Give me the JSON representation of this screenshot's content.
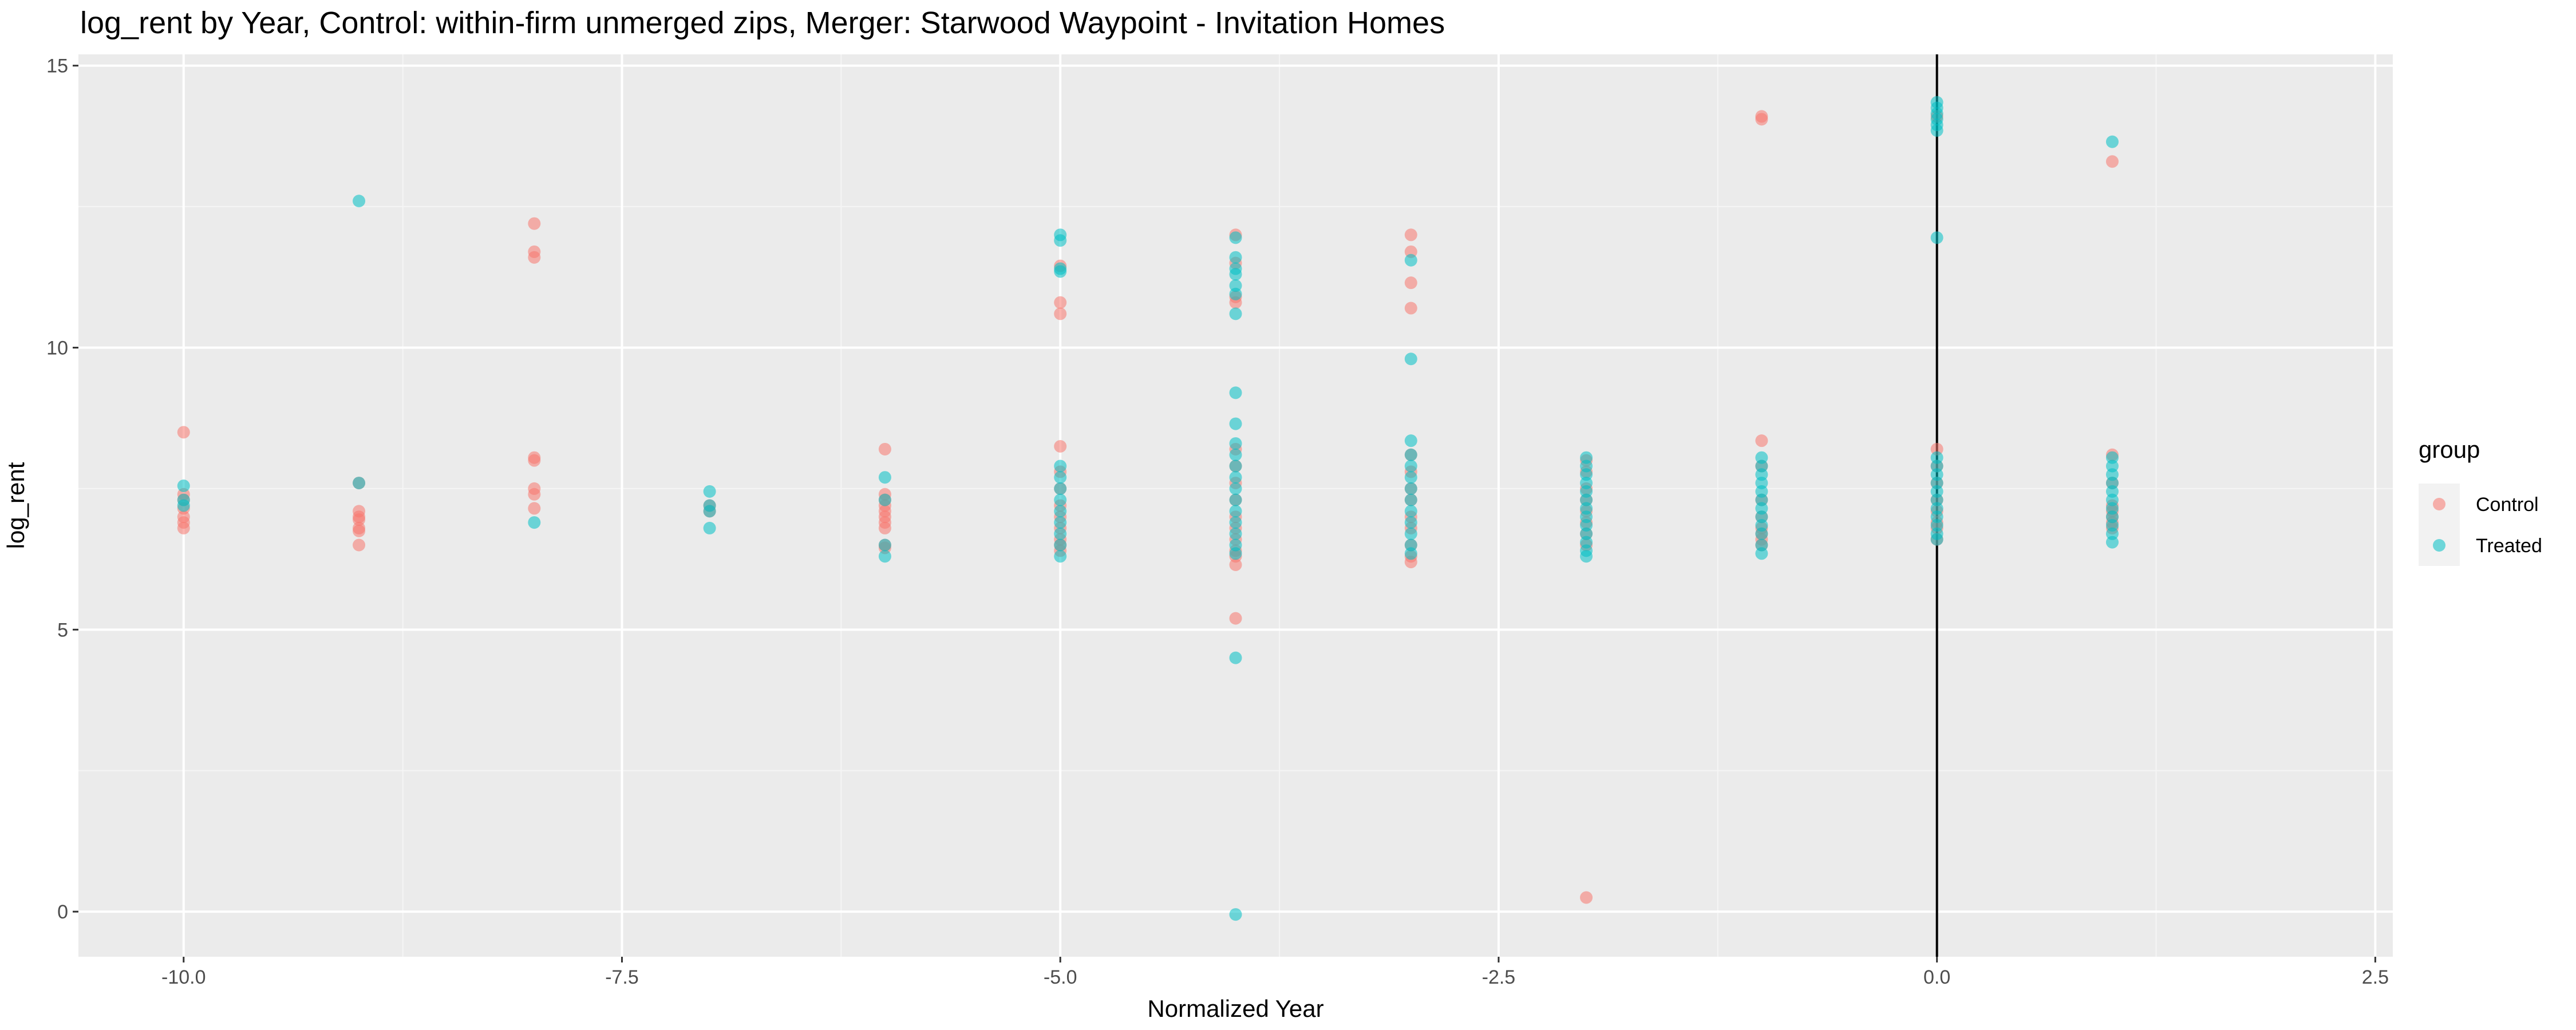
{
  "chart_data": {
    "type": "scatter",
    "title": "log_rent by Year, Control: within-firm unmerged zips, Merger: Starwood Waypoint - Invitation Homes",
    "xlabel": "Normalized Year",
    "ylabel": "log_rent",
    "xlim": [
      -10.6,
      2.6
    ],
    "ylim": [
      -0.8,
      15.2
    ],
    "x_ticks": [
      -10.0,
      -7.5,
      -5.0,
      -2.5,
      0.0,
      2.5
    ],
    "x_tick_labels": [
      "-10.0",
      "-7.5",
      "-5.0",
      "-2.5",
      "0.0",
      "2.5"
    ],
    "y_ticks": [
      0,
      5,
      10,
      15
    ],
    "y_tick_labels": [
      "0",
      "5",
      "10",
      "15"
    ],
    "vline_x": 0,
    "grid": true,
    "background": "#ebebeb",
    "legend": {
      "title": "group",
      "position": "right"
    },
    "series": [
      {
        "name": "Control",
        "color": "#f8766d",
        "points": [
          [
            -10,
            8.5
          ],
          [
            -10,
            7.4
          ],
          [
            -10,
            7.3
          ],
          [
            -10,
            7.15
          ],
          [
            -10,
            7.0
          ],
          [
            -10,
            6.9
          ],
          [
            -10,
            6.8
          ],
          [
            -9,
            7.6
          ],
          [
            -9,
            7.1
          ],
          [
            -9,
            7.0
          ],
          [
            -9,
            6.95
          ],
          [
            -9,
            6.8
          ],
          [
            -9,
            6.75
          ],
          [
            -9,
            6.5
          ],
          [
            -8,
            12.2
          ],
          [
            -8,
            11.7
          ],
          [
            -8,
            11.6
          ],
          [
            -8,
            8.05
          ],
          [
            -8,
            8.0
          ],
          [
            -8,
            7.5
          ],
          [
            -8,
            7.4
          ],
          [
            -8,
            7.15
          ],
          [
            -7,
            7.2
          ],
          [
            -7,
            7.1
          ],
          [
            -6,
            8.2
          ],
          [
            -6,
            7.4
          ],
          [
            -6,
            7.3
          ],
          [
            -6,
            7.2
          ],
          [
            -6,
            7.1
          ],
          [
            -6,
            7.0
          ],
          [
            -6,
            6.9
          ],
          [
            -6,
            6.8
          ],
          [
            -6,
            6.5
          ],
          [
            -6,
            6.45
          ],
          [
            -5,
            11.45
          ],
          [
            -5,
            10.8
          ],
          [
            -5,
            10.6
          ],
          [
            -5,
            8.25
          ],
          [
            -5,
            7.8
          ],
          [
            -5,
            7.5
          ],
          [
            -5,
            7.2
          ],
          [
            -5,
            7.0
          ],
          [
            -5,
            6.8
          ],
          [
            -5,
            6.6
          ],
          [
            -5,
            6.5
          ],
          [
            -5,
            6.4
          ],
          [
            -4,
            12.0
          ],
          [
            -4,
            11.5
          ],
          [
            -4,
            10.9
          ],
          [
            -4,
            10.8
          ],
          [
            -4,
            8.2
          ],
          [
            -4,
            7.9
          ],
          [
            -4,
            7.6
          ],
          [
            -4,
            7.3
          ],
          [
            -4,
            7.0
          ],
          [
            -4,
            6.8
          ],
          [
            -4,
            6.6
          ],
          [
            -4,
            6.4
          ],
          [
            -4,
            6.3
          ],
          [
            -4,
            6.15
          ],
          [
            -4,
            5.2
          ],
          [
            -3,
            12.0
          ],
          [
            -3,
            11.7
          ],
          [
            -3,
            11.15
          ],
          [
            -3,
            10.7
          ],
          [
            -3,
            8.1
          ],
          [
            -3,
            7.8
          ],
          [
            -3,
            7.5
          ],
          [
            -3,
            7.3
          ],
          [
            -3,
            7.0
          ],
          [
            -3,
            6.8
          ],
          [
            -3,
            6.5
          ],
          [
            -3,
            6.3
          ],
          [
            -3,
            6.2
          ],
          [
            -2,
            8.0
          ],
          [
            -2,
            7.8
          ],
          [
            -2,
            7.5
          ],
          [
            -2,
            7.3
          ],
          [
            -2,
            7.1
          ],
          [
            -2,
            6.9
          ],
          [
            -2,
            6.7
          ],
          [
            -2,
            6.5
          ],
          [
            -2,
            0.25
          ],
          [
            -1,
            14.05
          ],
          [
            -1,
            14.1
          ],
          [
            -1,
            8.35
          ],
          [
            -1,
            7.9
          ],
          [
            -1,
            7.3
          ],
          [
            -1,
            7.0
          ],
          [
            -1,
            6.8
          ],
          [
            -1,
            6.7
          ],
          [
            -1,
            6.6
          ],
          [
            -1,
            6.5
          ],
          [
            0,
            14.1
          ],
          [
            0,
            8.2
          ],
          [
            0,
            7.9
          ],
          [
            0,
            7.6
          ],
          [
            0,
            7.3
          ],
          [
            0,
            7.1
          ],
          [
            0,
            6.9
          ],
          [
            0,
            6.8
          ],
          [
            0,
            6.6
          ],
          [
            1,
            13.3
          ],
          [
            1,
            8.1
          ],
          [
            1,
            7.6
          ],
          [
            1,
            7.2
          ],
          [
            1,
            7.1
          ],
          [
            1,
            7.0
          ],
          [
            1,
            6.9
          ],
          [
            1,
            6.8
          ]
        ]
      },
      {
        "name": "Treated",
        "color": "#00bfc4",
        "points": [
          [
            -10,
            7.55
          ],
          [
            -10,
            7.3
          ],
          [
            -10,
            7.2
          ],
          [
            -9,
            12.6
          ],
          [
            -9,
            7.6
          ],
          [
            -8,
            6.9
          ],
          [
            -7,
            7.45
          ],
          [
            -7,
            7.2
          ],
          [
            -7,
            7.1
          ],
          [
            -7,
            6.8
          ],
          [
            -6,
            7.7
          ],
          [
            -6,
            7.3
          ],
          [
            -6,
            6.5
          ],
          [
            -6,
            6.3
          ],
          [
            -5,
            12.0
          ],
          [
            -5,
            11.9
          ],
          [
            -5,
            11.4
          ],
          [
            -5,
            11.35
          ],
          [
            -5,
            7.9
          ],
          [
            -5,
            7.7
          ],
          [
            -5,
            7.5
          ],
          [
            -5,
            7.3
          ],
          [
            -5,
            7.1
          ],
          [
            -5,
            6.9
          ],
          [
            -5,
            6.7
          ],
          [
            -5,
            6.5
          ],
          [
            -5,
            6.3
          ],
          [
            -4,
            11.95
          ],
          [
            -4,
            11.6
          ],
          [
            -4,
            11.4
          ],
          [
            -4,
            11.3
          ],
          [
            -4,
            11.1
          ],
          [
            -4,
            10.95
          ],
          [
            -4,
            10.6
          ],
          [
            -4,
            9.2
          ],
          [
            -4,
            8.65
          ],
          [
            -4,
            8.3
          ],
          [
            -4,
            8.1
          ],
          [
            -4,
            7.9
          ],
          [
            -4,
            7.7
          ],
          [
            -4,
            7.5
          ],
          [
            -4,
            7.3
          ],
          [
            -4,
            7.1
          ],
          [
            -4,
            6.9
          ],
          [
            -4,
            6.7
          ],
          [
            -4,
            6.5
          ],
          [
            -4,
            6.35
          ],
          [
            -4,
            4.5
          ],
          [
            -4,
            -0.05
          ],
          [
            -3,
            11.55
          ],
          [
            -3,
            9.8
          ],
          [
            -3,
            8.35
          ],
          [
            -3,
            8.1
          ],
          [
            -3,
            7.9
          ],
          [
            -3,
            7.7
          ],
          [
            -3,
            7.5
          ],
          [
            -3,
            7.3
          ],
          [
            -3,
            7.1
          ],
          [
            -3,
            6.9
          ],
          [
            -3,
            6.7
          ],
          [
            -3,
            6.5
          ],
          [
            -3,
            6.35
          ],
          [
            -2,
            8.05
          ],
          [
            -2,
            7.9
          ],
          [
            -2,
            7.75
          ],
          [
            -2,
            7.6
          ],
          [
            -2,
            7.45
          ],
          [
            -2,
            7.3
          ],
          [
            -2,
            7.15
          ],
          [
            -2,
            7.0
          ],
          [
            -2,
            6.85
          ],
          [
            -2,
            6.7
          ],
          [
            -2,
            6.55
          ],
          [
            -2,
            6.4
          ],
          [
            -2,
            6.3
          ],
          [
            -1,
            8.05
          ],
          [
            -1,
            7.9
          ],
          [
            -1,
            7.75
          ],
          [
            -1,
            7.6
          ],
          [
            -1,
            7.45
          ],
          [
            -1,
            7.3
          ],
          [
            -1,
            7.15
          ],
          [
            -1,
            7.0
          ],
          [
            -1,
            6.85
          ],
          [
            -1,
            6.7
          ],
          [
            -1,
            6.5
          ],
          [
            -1,
            6.35
          ],
          [
            0,
            14.35
          ],
          [
            0,
            14.25
          ],
          [
            0,
            14.15
          ],
          [
            0,
            14.05
          ],
          [
            0,
            13.95
          ],
          [
            0,
            13.85
          ],
          [
            0,
            11.95
          ],
          [
            0,
            8.05
          ],
          [
            0,
            7.9
          ],
          [
            0,
            7.75
          ],
          [
            0,
            7.6
          ],
          [
            0,
            7.45
          ],
          [
            0,
            7.3
          ],
          [
            0,
            7.15
          ],
          [
            0,
            7.0
          ],
          [
            0,
            6.85
          ],
          [
            0,
            6.7
          ],
          [
            0,
            6.6
          ],
          [
            1,
            13.65
          ],
          [
            1,
            8.05
          ],
          [
            1,
            7.9
          ],
          [
            1,
            7.75
          ],
          [
            1,
            7.6
          ],
          [
            1,
            7.45
          ],
          [
            1,
            7.3
          ],
          [
            1,
            7.15
          ],
          [
            1,
            7.0
          ],
          [
            1,
            6.85
          ],
          [
            1,
            6.7
          ],
          [
            1,
            6.55
          ]
        ]
      }
    ]
  }
}
